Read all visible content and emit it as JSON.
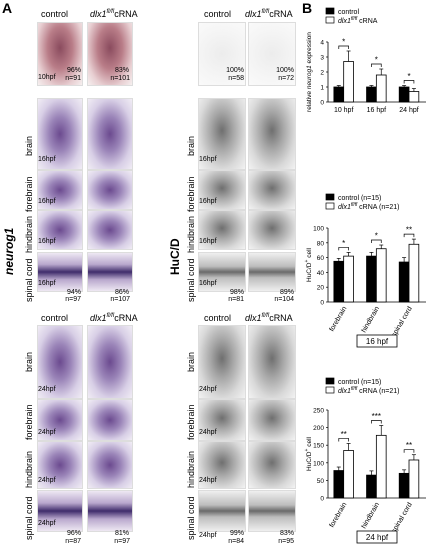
{
  "panelA": {
    "letter": "A",
    "col_control": "control",
    "col_dlx_main": "dlx1",
    "col_dlx_sup": "fl/fl",
    "col_dlx_rest": "cRNA",
    "neurog1_label": "neurog1",
    "hucd_label": "HuC/D",
    "region_brain": "brain",
    "region_forebrain": "forebrain",
    "region_hindbrain": "hindbrain",
    "region_spinal": "spinal cord",
    "stage10": "10hpf",
    "stage16": "16hpf",
    "stage24": "24hpf",
    "neurog_10_ctrl_pct": "96%",
    "neurog_10_ctrl_n": "n=91",
    "neurog_10_dlx_pct": "83%",
    "neurog_10_dlx_n": "n=101",
    "neurog_16_ctrl_pct": "94%",
    "neurog_16_ctrl_n": "n=97",
    "neurog_16_dlx_pct": "86%",
    "neurog_16_dlx_n": "n=107",
    "neurog_24_ctrl_pct": "96%",
    "neurog_24_ctrl_n": "n=87",
    "neurog_24_dlx_pct": "81%",
    "neurog_24_dlx_n": "n=97",
    "huc_10_ctrl_pct": "100%",
    "huc_10_ctrl_n": "n=58",
    "huc_10_dlx_pct": "100%",
    "huc_10_dlx_n": "n=72",
    "huc_16_ctrl_pct": "98%",
    "huc_16_ctrl_n": "n=81",
    "huc_16_dlx_pct": "89%",
    "huc_16_dlx_n": "n=104",
    "huc_24_ctrl_pct": "99%",
    "huc_24_ctrl_n": "n=84",
    "huc_24_dlx_pct": "83%",
    "huc_24_dlx_n": "n=95"
  },
  "panelB": {
    "letter": "B",
    "colors": {
      "control": "#000000",
      "dlx": "#ffffff"
    }
  },
  "chart_data": [
    {
      "type": "bar",
      "legend": [
        "control",
        "dlx1fl/fl cRNA"
      ],
      "ylabel": "relative neurog1 expression",
      "categories": [
        "10 hpf",
        "16 hpf",
        "24 hpf"
      ],
      "ylim": [
        0,
        4
      ],
      "yticks": [
        "0",
        "1",
        "2",
        "3",
        "4"
      ],
      "series": [
        {
          "name": "control",
          "values": [
            1.0,
            1.0,
            1.0
          ],
          "errors": [
            0.1,
            0.1,
            0.1
          ]
        },
        {
          "name": "dlx1fl/fl cRNA",
          "values": [
            2.7,
            1.8,
            0.7
          ],
          "errors": [
            0.7,
            0.4,
            0.2
          ]
        }
      ],
      "significance": [
        "*",
        "*",
        "*"
      ]
    },
    {
      "type": "bar",
      "legend": [
        "control (n=15)",
        "dlx1fl/fl cRNA (n=21)"
      ],
      "ylabel": "HuC/D+ cell",
      "categories": [
        "forebrain",
        "hindbrain",
        "spinal cord"
      ],
      "ylim": [
        0,
        100
      ],
      "yticks": [
        "0",
        "20",
        "40",
        "60",
        "80",
        "100"
      ],
      "series": [
        {
          "name": "control (n=15)",
          "values": [
            55,
            62,
            54
          ],
          "errors": [
            4,
            5,
            6
          ]
        },
        {
          "name": "dlx1fl/fl cRNA (n=21)",
          "values": [
            62,
            72,
            78
          ],
          "errors": [
            5,
            5,
            7
          ]
        }
      ],
      "significance": [
        "*",
        "*",
        "**"
      ],
      "stage_box": "16 hpf"
    },
    {
      "type": "bar",
      "legend": [
        "control (n=15)",
        "dlx1fl/fl cRNA (n=21)"
      ],
      "ylabel": "HuC/D+ cell",
      "categories": [
        "forebrain",
        "hindbrain",
        "spinal cord"
      ],
      "ylim": [
        0,
        250
      ],
      "yticks": [
        "0",
        "50",
        "100",
        "150",
        "200",
        "250"
      ],
      "series": [
        {
          "name": "control (n=15)",
          "values": [
            78,
            65,
            70
          ],
          "errors": [
            10,
            12,
            10
          ]
        },
        {
          "name": "dlx1fl/fl cRNA (n=21)",
          "values": [
            135,
            178,
            108
          ],
          "errors": [
            20,
            28,
            15
          ]
        }
      ],
      "significance": [
        "**",
        "***",
        "**"
      ],
      "stage_box": "24 hpf"
    }
  ]
}
